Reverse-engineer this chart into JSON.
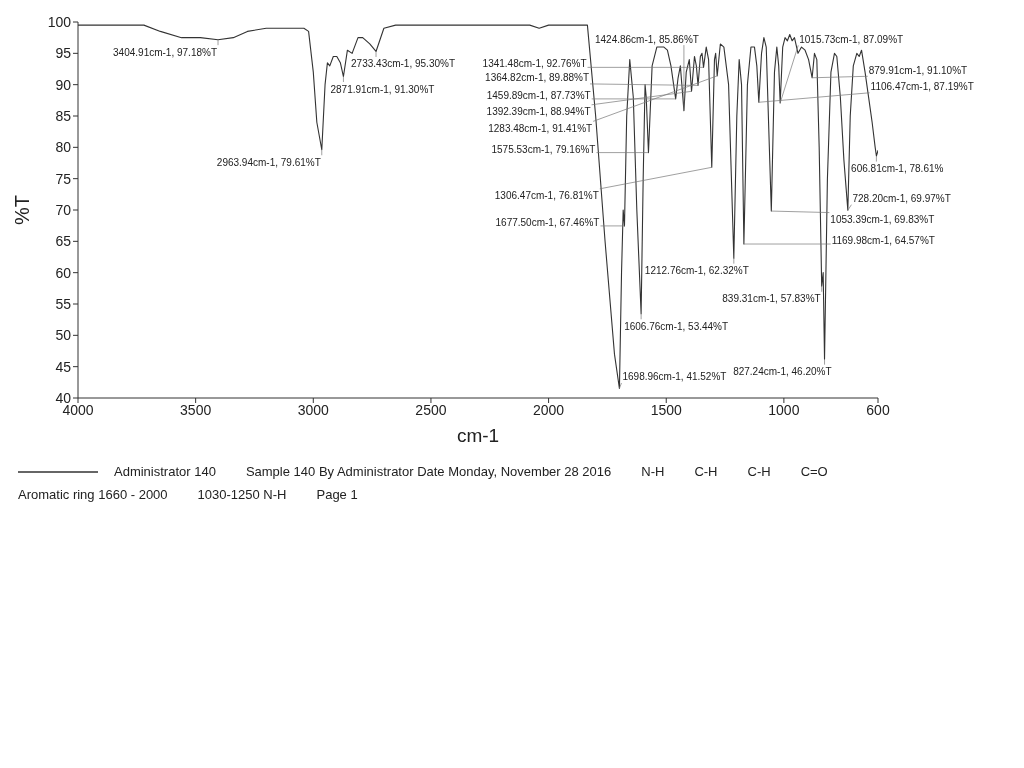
{
  "chart_data": {
    "type": "line",
    "xlabel": "cm-1",
    "ylabel": "%T",
    "xlim": [
      4000,
      600
    ],
    "xticks": [
      4000,
      3500,
      3000,
      2500,
      2000,
      1500,
      1000,
      600
    ],
    "ylim": [
      40,
      100
    ],
    "yticks": [
      40,
      45,
      50,
      55,
      60,
      65,
      70,
      75,
      80,
      85,
      90,
      95,
      100
    ],
    "legend": "bottom left",
    "x": [
      4000,
      3900,
      3800,
      3720,
      3650,
      3560,
      3480,
      3404.91,
      3340,
      3280,
      3200,
      3120,
      3070,
      3040,
      3020,
      3000,
      2985,
      2963.94,
      2950,
      2940,
      2930,
      2915,
      2900,
      2885,
      2871.91,
      2855,
      2835,
      2810,
      2790,
      2760,
      2733.43,
      2700,
      2650,
      2500,
      2300,
      2200,
      2080,
      2040,
      2000,
      1900,
      1835,
      1800,
      1760,
      1720,
      1698.96,
      1690,
      1683,
      1677.5,
      1668,
      1655,
      1640,
      1625,
      1606.76,
      1598,
      1590,
      1585,
      1575.53,
      1560,
      1540,
      1510,
      1495,
      1480,
      1459.89,
      1450,
      1440,
      1424.86,
      1415,
      1402,
      1392.39,
      1380,
      1372,
      1364.82,
      1355,
      1348,
      1341.48,
      1330,
      1320,
      1306.47,
      1295,
      1290,
      1283.48,
      1270,
      1255,
      1235,
      1212.76,
      1200,
      1190,
      1180,
      1169.98,
      1155,
      1140,
      1125,
      1115,
      1106.47,
      1095,
      1085,
      1075,
      1053.39,
      1040,
      1030,
      1022,
      1015.73,
      1005,
      995,
      985,
      975,
      965,
      955,
      940,
      925,
      910,
      895,
      879.91,
      870,
      860,
      850,
      839.31,
      833,
      827.24,
      815,
      800,
      785,
      775,
      760,
      745,
      728.2,
      718,
      705,
      690,
      680,
      670,
      655,
      640,
      625,
      612,
      606.81,
      600
    ],
    "series": [
      {
        "name": "Administrator 140",
        "color": "#333333",
        "values": [
          99.5,
          99.5,
          99.5,
          99.5,
          98.5,
          97.5,
          97.5,
          97.18,
          97.5,
          98.5,
          99,
          99,
          99,
          99,
          98.5,
          92,
          84,
          79.61,
          90,
          93.5,
          93,
          94.5,
          94.5,
          93.5,
          91.3,
          95.5,
          95,
          97.5,
          97.5,
          96.5,
          95.3,
          99,
          99.5,
          99.5,
          99.5,
          99.5,
          99.5,
          99,
          99.5,
          99.5,
          99.5,
          85,
          65,
          47,
          41.52,
          60,
          70,
          67.46,
          85,
          94,
          88,
          70,
          53.44,
          75,
          90,
          88,
          79.16,
          93,
          96,
          96,
          95.5,
          93,
          87.73,
          91,
          93,
          85.86,
          92,
          94,
          88.94,
          94.5,
          93,
          89.88,
          94.5,
          95,
          92.76,
          96,
          94,
          76.81,
          94,
          95,
          91.41,
          96.5,
          96,
          90,
          62.32,
          85,
          94,
          90,
          64.57,
          90,
          96,
          96,
          93,
          87.19,
          95,
          97.5,
          96,
          69.83,
          92,
          96,
          93,
          87.09,
          96,
          97.5,
          97,
          98,
          97,
          97.5,
          95,
          96,
          95.5,
          94,
          91.1,
          95,
          94,
          80,
          57.83,
          60,
          46.2,
          75,
          92,
          95,
          94.5,
          88,
          78,
          69.97,
          85,
          93,
          95,
          94.5,
          95.5,
          92,
          88,
          84,
          80,
          78.61,
          79.5
        ]
      }
    ],
    "annotations": [
      {
        "text": "3404.91cm-1, 97.18%T",
        "x": 3404.91,
        "y": 97.18
      },
      {
        "text": "2733.43cm-1, 95.30%T",
        "x": 2733.43,
        "y": 95.3
      },
      {
        "text": "2871.91cm-1, 91.30%T",
        "x": 2871.91,
        "y": 91.3
      },
      {
        "text": "2963.94cm-1, 79.61%T",
        "x": 2963.94,
        "y": 79.61
      },
      {
        "text": "1698.96cm-1, 41.52%T",
        "x": 1698.96,
        "y": 41.52
      },
      {
        "text": "827.24cm-1, 46.20%T",
        "x": 827.24,
        "y": 46.2
      },
      {
        "text": "1606.76cm-1, 53.44%T",
        "x": 1606.76,
        "y": 53.44
      },
      {
        "text": "839.31cm-1, 57.83%T",
        "x": 839.31,
        "y": 57.83
      },
      {
        "text": "1212.76cm-1, 62.32%T",
        "x": 1212.76,
        "y": 62.32
      },
      {
        "text": "1169.98cm-1, 64.57%T",
        "x": 1169.98,
        "y": 64.57
      },
      {
        "text": "1677.50cm-1, 67.46%T",
        "x": 1677.5,
        "y": 67.46
      },
      {
        "text": "1053.39cm-1, 69.83%T",
        "x": 1053.39,
        "y": 69.83
      },
      {
        "text": "728.20cm-1, 69.97%T",
        "x": 728.2,
        "y": 69.97
      },
      {
        "text": "1306.47cm-1, 76.81%T",
        "x": 1306.47,
        "y": 76.81
      },
      {
        "text": "606.81cm-1, 78.61%",
        "x": 606.81,
        "y": 78.61
      },
      {
        "text": "1575.53cm-1, 79.16%T",
        "x": 1575.53,
        "y": 79.16
      },
      {
        "text": "1424.86cm-1, 85.86%T",
        "x": 1424.86,
        "y": 85.86
      },
      {
        "text": "1015.73cm-1, 87.09%T",
        "x": 1015.73,
        "y": 87.09
      },
      {
        "text": "1106.47cm-1, 87.19%T",
        "x": 1106.47,
        "y": 87.19
      },
      {
        "text": "1459.89cm-1, 87.73%T",
        "x": 1459.89,
        "y": 87.73
      },
      {
        "text": "1392.39cm-1, 88.94%T",
        "x": 1392.39,
        "y": 88.94
      },
      {
        "text": "1364.82cm-1, 89.88%T",
        "x": 1364.82,
        "y": 89.88
      },
      {
        "text": "879.91cm-1, 91.10%T",
        "x": 879.91,
        "y": 91.1
      },
      {
        "text": "1283.48cm-1, 91.41%T",
        "x": 1283.48,
        "y": 91.41
      },
      {
        "text": "1341.48cm-1, 92.76%T",
        "x": 1341.48,
        "y": 92.76
      },
      "Sample 140 By Administrator Date Monday, November 28 2016",
      "N-H",
      "C-H",
      "C-H",
      "C=O",
      "Aromatic ring 1660 - 2000",
      "1030-1250 N-H",
      "Page 1"
    ]
  }
}
